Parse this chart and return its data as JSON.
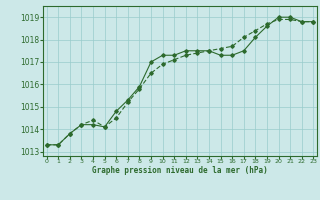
{
  "line1": [
    1013.3,
    1013.3,
    1013.8,
    1014.2,
    1014.2,
    1014.1,
    1014.8,
    1015.3,
    1015.9,
    1017.0,
    1017.3,
    1017.3,
    1017.5,
    1017.5,
    1017.5,
    1017.3,
    1017.3,
    1017.5,
    1018.1,
    1018.6,
    1019.0,
    1019.0,
    1018.8,
    1018.8
  ],
  "line2": [
    1013.3,
    1013.3,
    1013.8,
    1014.2,
    1014.4,
    1014.1,
    1014.5,
    1015.2,
    1015.8,
    1016.5,
    1016.9,
    1017.1,
    1017.3,
    1017.4,
    1017.5,
    1017.6,
    1017.7,
    1018.1,
    1018.4,
    1018.7,
    1018.9,
    1018.9,
    1018.8,
    1018.8
  ],
  "x": [
    0,
    1,
    2,
    3,
    4,
    5,
    6,
    7,
    8,
    9,
    10,
    11,
    12,
    13,
    14,
    15,
    16,
    17,
    18,
    19,
    20,
    21,
    22,
    23
  ],
  "ylim": [
    1012.8,
    1019.5
  ],
  "yticks": [
    1013,
    1014,
    1015,
    1016,
    1017,
    1018,
    1019
  ],
  "xticks": [
    0,
    1,
    2,
    3,
    4,
    5,
    6,
    7,
    8,
    9,
    10,
    11,
    12,
    13,
    14,
    15,
    16,
    17,
    18,
    19,
    20,
    21,
    22,
    23
  ],
  "line_color": "#2d6a2d",
  "bg_color": "#cce8e8",
  "grid_color": "#99cccc",
  "xlabel": "Graphe pression niveau de la mer (hPa)",
  "xlabel_color": "#2d6a2d",
  "tick_color": "#2d6a2d",
  "marker": "D",
  "marker_size": 1.8,
  "line_width": 0.8
}
